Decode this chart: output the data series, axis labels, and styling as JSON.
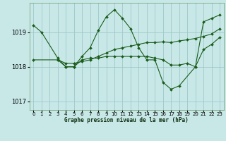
{
  "title": "Graphe pression niveau de la mer (hPa)",
  "bg_color": "#c8e8e8",
  "grid_color": "#a0c8c8",
  "line_color": "#1a5c1a",
  "ylim": [
    1016.75,
    1019.85
  ],
  "yticks": [
    1017,
    1018,
    1019
  ],
  "xlim": [
    -0.5,
    23.5
  ],
  "xticks": [
    0,
    1,
    2,
    3,
    4,
    5,
    6,
    7,
    8,
    9,
    10,
    11,
    12,
    13,
    14,
    15,
    16,
    17,
    18,
    19,
    20,
    21,
    22,
    23
  ],
  "series": [
    {
      "x": [
        0,
        1,
        3,
        4,
        5,
        6,
        7,
        8,
        9,
        10,
        11,
        12,
        13,
        14,
        15,
        16,
        17,
        18,
        20,
        21,
        22,
        23
      ],
      "y": [
        1019.2,
        1019.0,
        1018.25,
        1018.0,
        1018.0,
        1018.3,
        1018.55,
        1019.05,
        1019.45,
        1019.65,
        1019.4,
        1019.1,
        1018.55,
        1018.2,
        1018.2,
        1017.55,
        1017.35,
        1017.45,
        1018.0,
        1019.3,
        1019.4,
        1019.5
      ]
    },
    {
      "x": [
        0,
        3,
        4,
        5,
        6,
        7,
        8,
        9,
        10,
        11,
        12,
        13,
        14,
        15,
        16,
        17,
        18,
        19,
        20,
        21,
        22,
        23
      ],
      "y": [
        1018.2,
        1018.2,
        1018.1,
        1018.1,
        1018.15,
        1018.2,
        1018.3,
        1018.4,
        1018.5,
        1018.55,
        1018.6,
        1018.65,
        1018.7,
        1018.7,
        1018.72,
        1018.7,
        1018.75,
        1018.78,
        1018.82,
        1018.88,
        1018.95,
        1019.1
      ]
    },
    {
      "x": [
        3,
        4,
        5,
        6,
        7,
        8,
        9,
        10,
        11,
        12,
        13,
        14,
        15,
        16,
        17,
        18,
        19,
        20,
        21,
        22,
        23
      ],
      "y": [
        1018.2,
        1018.0,
        1018.0,
        1018.2,
        1018.25,
        1018.25,
        1018.3,
        1018.3,
        1018.3,
        1018.3,
        1018.3,
        1018.3,
        1018.25,
        1018.2,
        1018.05,
        1018.05,
        1018.1,
        1018.0,
        1018.5,
        1018.65,
        1018.85
      ]
    }
  ]
}
